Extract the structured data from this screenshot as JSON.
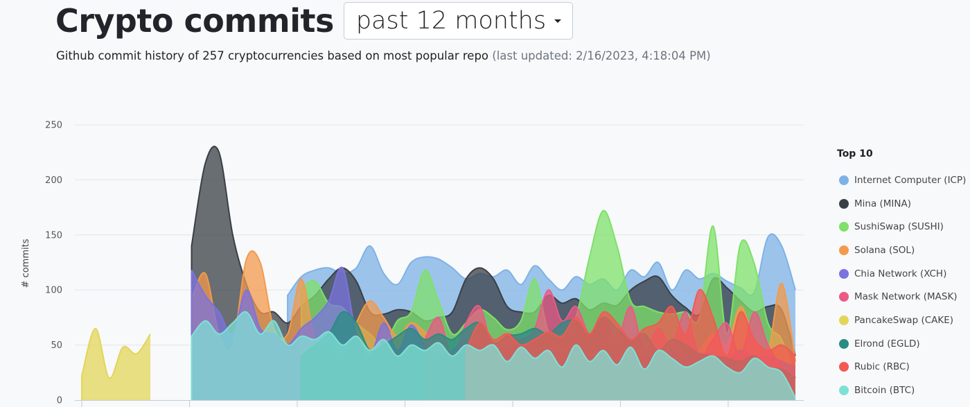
{
  "header": {
    "title": "Crypto commits",
    "range_selector": "past 12 months",
    "subtitle": "Github commit history of 257 cryptocurrencies based on most popular repo",
    "last_updated": "(last updated: 2/16/2023, 4:18:04 PM)"
  },
  "colors": {
    "background": "#f8f9fb",
    "grid": "#e3e6ea"
  },
  "chart_data": {
    "type": "area",
    "ylabel": "# commits",
    "ylim": [
      0,
      250
    ],
    "yticks": [
      0,
      50,
      100,
      150,
      200,
      250
    ],
    "x_count": 53,
    "grid": true,
    "legend_title": "Top 10",
    "legend_position": "right",
    "series": [
      {
        "name": "Internet Computer (ICP)",
        "color": "#7eb2e6",
        "values": [
          null,
          null,
          null,
          null,
          null,
          null,
          null,
          null,
          null,
          null,
          null,
          null,
          null,
          null,
          null,
          95,
          112,
          118,
          120,
          115,
          120,
          140,
          115,
          105,
          125,
          130,
          128,
          120,
          110,
          115,
          112,
          118,
          105,
          122,
          110,
          100,
          112,
          105,
          110,
          100,
          118,
          112,
          125,
          100,
          118,
          110,
          115,
          108,
          102,
          98,
          148,
          140,
          100
        ]
      },
      {
        "name": "Mina (MINA)",
        "color": "#3a3f46",
        "values": [
          null,
          null,
          null,
          null,
          null,
          null,
          null,
          null,
          140,
          215,
          225,
          150,
          105,
          80,
          80,
          70,
          85,
          95,
          110,
          120,
          108,
          80,
          78,
          82,
          80,
          72,
          75,
          80,
          110,
          120,
          110,
          85,
          80,
          80,
          95,
          88,
          92,
          82,
          88,
          86,
          100,
          108,
          112,
          95,
          84,
          78,
          110,
          102,
          90,
          80,
          85,
          82,
          40
        ]
      },
      {
        "name": "SushiSwap (SUSHI)",
        "color": "#7fe06a",
        "values": [
          null,
          null,
          null,
          null,
          null,
          null,
          null,
          null,
          null,
          null,
          null,
          null,
          null,
          null,
          null,
          null,
          102,
          108,
          88,
          84,
          70,
          60,
          50,
          72,
          80,
          118,
          90,
          60,
          70,
          82,
          75,
          64,
          72,
          110,
          62,
          60,
          75,
          130,
          172,
          140,
          90,
          85,
          80,
          78,
          80,
          75,
          158,
          60,
          142,
          124,
          70,
          55,
          20
        ]
      },
      {
        "name": "Solana (SOL)",
        "color": "#f39a4c",
        "values": [
          null,
          null,
          null,
          null,
          null,
          null,
          null,
          null,
          92,
          115,
          60,
          50,
          128,
          125,
          65,
          60,
          110,
          55,
          50,
          35,
          70,
          90,
          75,
          58,
          70,
          62,
          50,
          40,
          55,
          50,
          40,
          60,
          50,
          40,
          45,
          48,
          40,
          42,
          45,
          40,
          40,
          45,
          40,
          52,
          40,
          45,
          60,
          50,
          85,
          55,
          45,
          106,
          35
        ]
      },
      {
        "name": "Chia Network (XCH)",
        "color": "#7b73de",
        "values": [
          null,
          null,
          null,
          null,
          null,
          null,
          null,
          null,
          118,
          95,
          80,
          60,
          100,
          65,
          60,
          50,
          65,
          75,
          90,
          120,
          60,
          40,
          70,
          45,
          68,
          50,
          40,
          45,
          55,
          50,
          42,
          45,
          50,
          40,
          45,
          42,
          40,
          38,
          40,
          42,
          35,
          40,
          38,
          45,
          40,
          42,
          40,
          35,
          45,
          38,
          40,
          35,
          30
        ]
      },
      {
        "name": "Mask Network (MASK)",
        "color": "#ea5a84",
        "values": [
          null,
          null,
          null,
          null,
          null,
          null,
          null,
          null,
          null,
          null,
          null,
          null,
          null,
          null,
          null,
          null,
          null,
          null,
          null,
          null,
          null,
          null,
          null,
          null,
          null,
          55,
          75,
          40,
          70,
          85,
          45,
          60,
          55,
          65,
          100,
          72,
          85,
          60,
          75,
          55,
          85,
          45,
          65,
          50,
          80,
          40,
          55,
          70,
          40,
          80,
          50,
          30,
          20
        ]
      },
      {
        "name": "PancakeSwap (CAKE)",
        "color": "#e3d55a",
        "values": [
          22,
          65,
          20,
          48,
          42,
          60,
          null,
          null,
          null,
          null,
          null,
          null,
          null,
          null,
          null,
          null,
          null,
          null,
          null,
          null,
          null,
          null,
          null,
          null,
          null,
          null,
          null,
          null,
          null,
          null,
          null,
          null,
          null,
          null,
          null,
          null,
          null,
          null,
          null,
          null,
          null,
          null,
          null,
          null,
          null,
          null,
          null,
          null,
          null,
          null,
          null,
          null,
          null
        ]
      },
      {
        "name": "Elrond (EGLD)",
        "color": "#2a8b83",
        "values": [
          null,
          null,
          null,
          null,
          null,
          null,
          null,
          null,
          null,
          null,
          null,
          null,
          null,
          null,
          null,
          null,
          40,
          50,
          60,
          80,
          70,
          45,
          50,
          58,
          65,
          55,
          60,
          55,
          65,
          70,
          52,
          58,
          60,
          65,
          60,
          70,
          72,
          60,
          75,
          65,
          55,
          60,
          45,
          55,
          50,
          42,
          40,
          38,
          35,
          40,
          30,
          28,
          20
        ]
      },
      {
        "name": "Rubic (RBC)",
        "color": "#f25a52",
        "values": [
          null,
          null,
          null,
          null,
          null,
          null,
          null,
          null,
          null,
          null,
          null,
          null,
          null,
          null,
          null,
          null,
          null,
          null,
          null,
          null,
          null,
          null,
          null,
          null,
          null,
          null,
          null,
          null,
          45,
          70,
          55,
          60,
          50,
          55,
          62,
          58,
          75,
          60,
          80,
          70,
          55,
          65,
          70,
          85,
          60,
          100,
          75,
          40,
          80,
          55,
          45,
          50,
          40
        ]
      },
      {
        "name": "Bitcoin (BTC)",
        "color": "#7fe0d6",
        "values": [
          null,
          null,
          null,
          null,
          null,
          null,
          null,
          null,
          58,
          72,
          60,
          70,
          80,
          60,
          72,
          50,
          58,
          55,
          62,
          50,
          58,
          45,
          55,
          40,
          50,
          45,
          52,
          40,
          50,
          45,
          50,
          35,
          48,
          38,
          45,
          30,
          50,
          35,
          45,
          32,
          48,
          28,
          45,
          38,
          30,
          35,
          40,
          30,
          25,
          38,
          30,
          25,
          2
        ]
      }
    ]
  }
}
